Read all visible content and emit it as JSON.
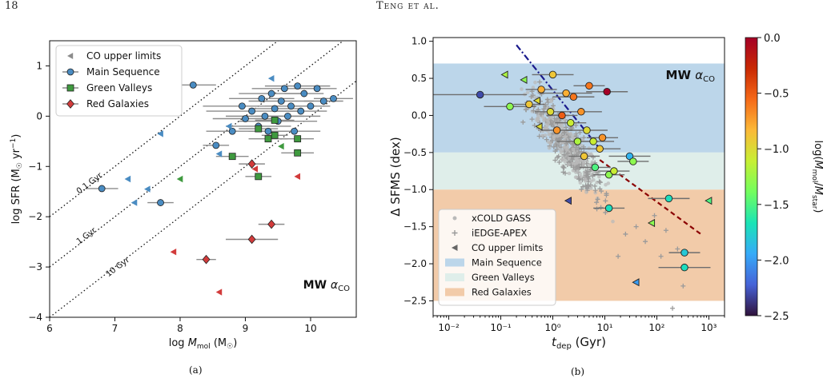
{
  "page": {
    "page_number": "18",
    "running_head": "Teng et al.",
    "caption_a": "(a)",
    "caption_b": "(b)"
  },
  "colors": {
    "main_sequence": "#4a8cc2",
    "green_valleys": "#3f9a3f",
    "red_galaxies": "#d23b3b",
    "upper_limit_grey": "#8c8c8c",
    "band_ms": "#bcd6ea",
    "band_gv": "#dfeeea",
    "band_rg": "#f2cba9",
    "fit_blue": "#1a1a8c",
    "fit_red": "#8b0000"
  },
  "chart_data": [
    {
      "type": "scatter",
      "xlabel": "log M_mol (M⊙)",
      "ylabel": "log SFR (M⊙ yr⁻¹)",
      "xlim": [
        6,
        10.7
      ],
      "ylim": [
        -4,
        1.5
      ],
      "xticks": [
        6,
        7,
        8,
        9,
        10
      ],
      "yticks": [
        -4,
        -3,
        -2,
        -1,
        0,
        1
      ],
      "grid": false,
      "legend_position": "top-left",
      "annotation": "MW α",
      "annotation_sub": "CO",
      "depletion_lines": [
        {
          "label": "0.1 Gyr",
          "log_tdep_yr": 8
        },
        {
          "label": "1 Gyr",
          "log_tdep_yr": 9
        },
        {
          "label": "10 Gyr",
          "log_tdep_yr": 10
        }
      ],
      "series": [
        {
          "name": "CO upper limits",
          "marker": "triangle-left",
          "color": "#8c8c8c",
          "points": []
        },
        {
          "name": "Main Sequence",
          "marker": "circle",
          "color": "#4a8cc2",
          "points": [
            [
              6.8,
              -1.44,
              0.25
            ],
            [
              7.7,
              -1.72,
              0.2
            ],
            [
              8.2,
              0.62,
              0.35
            ],
            [
              8.55,
              -0.58,
              0.2
            ],
            [
              8.8,
              -0.3,
              0.4
            ],
            [
              8.95,
              0.2,
              0.6
            ],
            [
              9.0,
              -0.05,
              0.5
            ],
            [
              9.1,
              0.1,
              0.7
            ],
            [
              9.2,
              -0.2,
              0.5
            ],
            [
              9.25,
              0.35,
              0.5
            ],
            [
              9.3,
              0.0,
              0.6
            ],
            [
              9.35,
              -0.3,
              0.3
            ],
            [
              9.4,
              0.45,
              0.5
            ],
            [
              9.45,
              0.15,
              0.4
            ],
            [
              9.5,
              -0.1,
              0.6
            ],
            [
              9.55,
              0.3,
              0.5
            ],
            [
              9.6,
              0.55,
              0.5
            ],
            [
              9.65,
              0.0,
              0.5
            ],
            [
              9.7,
              0.2,
              0.4
            ],
            [
              9.75,
              -0.3,
              0.4
            ],
            [
              9.8,
              0.6,
              0.5
            ],
            [
              9.85,
              0.1,
              0.4
            ],
            [
              9.9,
              0.45,
              0.3
            ],
            [
              10.0,
              0.2,
              0.3
            ],
            [
              10.1,
              0.55,
              0.3
            ],
            [
              10.2,
              0.3,
              0.3
            ],
            [
              10.35,
              0.35,
              0.3
            ]
          ]
        },
        {
          "name": "Green Valleys",
          "marker": "square",
          "color": "#3f9a3f",
          "points": [
            [
              8.8,
              -0.8,
              0.25
            ],
            [
              9.2,
              -1.2,
              0.2
            ],
            [
              9.2,
              -0.25,
              0.3
            ],
            [
              9.35,
              -0.45,
              0.3
            ],
            [
              9.45,
              -0.08,
              0.3
            ],
            [
              9.8,
              -0.45,
              0.25
            ],
            [
              9.8,
              -0.73,
              0.25
            ],
            [
              9.45,
              -0.38,
              0.2
            ]
          ]
        },
        {
          "name": "Red Galaxies",
          "marker": "diamond",
          "color": "#d23b3b",
          "points": [
            [
              8.4,
              -2.85,
              0.15
            ],
            [
              9.1,
              -0.95,
              0.2
            ],
            [
              9.1,
              -2.45,
              0.4
            ],
            [
              9.4,
              -2.15,
              0.2
            ]
          ]
        }
      ],
      "upper_limits": [
        {
          "x": 7.2,
          "y": -1.25,
          "color": "#4a8cc2"
        },
        {
          "x": 7.3,
          "y": -1.72,
          "color": "#4a8cc2"
        },
        {
          "x": 7.5,
          "y": -1.45,
          "color": "#4a8cc2"
        },
        {
          "x": 7.7,
          "y": -0.35,
          "color": "#4a8cc2"
        },
        {
          "x": 8.6,
          "y": -0.75,
          "color": "#4a8cc2"
        },
        {
          "x": 8.75,
          "y": -0.2,
          "color": "#4a8cc2"
        },
        {
          "x": 9.4,
          "y": 0.75,
          "color": "#4a8cc2"
        },
        {
          "x": 8.0,
          "y": -1.25,
          "color": "#3f9a3f"
        },
        {
          "x": 9.55,
          "y": -0.6,
          "color": "#3f9a3f"
        },
        {
          "x": 7.9,
          "y": -2.7,
          "color": "#d23b3b"
        },
        {
          "x": 8.6,
          "y": -3.5,
          "color": "#d23b3b"
        },
        {
          "x": 9.8,
          "y": -1.2,
          "color": "#d23b3b"
        },
        {
          "x": 9.15,
          "y": -1.05,
          "color": "#d23b3b"
        }
      ]
    },
    {
      "type": "scatter",
      "xlabel": "t_dep (Gyr)",
      "ylabel": "Δ SFMS (dex)",
      "xscale": "log",
      "xlim": [
        0.005,
        2000
      ],
      "ylim": [
        -2.7,
        1.05
      ],
      "xticks": [
        "10⁻²",
        "10⁻¹",
        "10⁰",
        "10¹",
        "10²",
        "10³"
      ],
      "yticks": [
        "1.0",
        "0.5",
        "0.0",
        "−0.5",
        "−1.0",
        "−1.5",
        "−2.0",
        "−2.5"
      ],
      "legend_position": "lower-left",
      "annotation": "MW α",
      "annotation_sub": "CO",
      "bands": [
        {
          "name": "Main Sequence",
          "y": [
            -0.5,
            0.7
          ],
          "color": "#bcd6ea"
        },
        {
          "name": "Green Valleys",
          "y": [
            -1.0,
            -0.5
          ],
          "color": "#dfeeea"
        },
        {
          "name": "Red Galaxies",
          "y": [
            -2.5,
            -1.0
          ],
          "color": "#f2cba9"
        }
      ],
      "legend": [
        "xCOLD GASS",
        "iEDGE-APEX",
        "CO upper limits",
        "Main Sequence",
        "Green Valleys",
        "Red Galaxies"
      ],
      "colorbar": {
        "label": "log(M_mol/M_star)",
        "range": [
          -2.5,
          0.0
        ],
        "ticks": [
          "0.0",
          "−0.5",
          "−1.0",
          "−1.5",
          "−2.0",
          "−2.5"
        ],
        "colormap": [
          "#30123b",
          "#4662d7",
          "#36aaf9",
          "#1ae4b6",
          "#72fe5e",
          "#c7ef34",
          "#fbb938",
          "#f56918",
          "#c92903",
          "#a50026"
        ]
      },
      "fit_lines": [
        {
          "style": "dash-dot",
          "color": "#1a1a8c",
          "x": [
            0.2,
            8
          ],
          "y": [
            0.95,
            -0.45
          ]
        },
        {
          "style": "dashed",
          "color": "#8b0000",
          "x": [
            8,
            700
          ],
          "y": [
            -0.6,
            -1.6
          ]
        }
      ],
      "points": [
        {
          "t": 0.04,
          "d": 0.28,
          "c": -2.3,
          "e": 0.9
        },
        {
          "t": 0.15,
          "d": 0.12,
          "c": -1.3,
          "e": 0.5
        },
        {
          "t": 0.35,
          "d": 0.15,
          "c": -0.9,
          "e": 0.3
        },
        {
          "t": 0.6,
          "d": 0.35,
          "c": -0.8,
          "e": 0.3
        },
        {
          "t": 0.9,
          "d": 0.05,
          "c": -1.0,
          "e": 0.3
        },
        {
          "t": 1.0,
          "d": 0.55,
          "c": -0.9,
          "e": 0.4
        },
        {
          "t": 1.2,
          "d": -0.2,
          "c": -0.7,
          "e": 0.3
        },
        {
          "t": 1.5,
          "d": 0.0,
          "c": -0.5,
          "e": 0.3
        },
        {
          "t": 1.8,
          "d": 0.3,
          "c": -0.8,
          "e": 0.5
        },
        {
          "t": 2.2,
          "d": -0.1,
          "c": -1.1,
          "e": 0.3
        },
        {
          "t": 2.5,
          "d": 0.25,
          "c": -0.6,
          "e": 0.4
        },
        {
          "t": 3.0,
          "d": -0.35,
          "c": -1.2,
          "e": 0.4
        },
        {
          "t": 3.5,
          "d": 0.05,
          "c": -0.7,
          "e": 0.4
        },
        {
          "t": 4.0,
          "d": -0.55,
          "c": -0.9,
          "e": 0.3
        },
        {
          "t": 4.5,
          "d": -0.2,
          "c": -1.0,
          "e": 0.4
        },
        {
          "t": 5.0,
          "d": 0.4,
          "c": -0.6,
          "e": 0.3
        },
        {
          "t": 6.0,
          "d": -0.35,
          "c": -1.1,
          "e": 0.4
        },
        {
          "t": 6.5,
          "d": -0.7,
          "c": -1.5,
          "e": 0.3
        },
        {
          "t": 8.0,
          "d": -0.45,
          "c": -0.9,
          "e": 0.4
        },
        {
          "t": 9.0,
          "d": -0.3,
          "c": -0.7,
          "e": 0.3
        },
        {
          "t": 11.0,
          "d": 0.32,
          "c": 0.0,
          "e": 0.4
        },
        {
          "t": 12.0,
          "d": -0.8,
          "c": -1.3,
          "e": 0.3
        },
        {
          "t": 15.0,
          "d": -0.75,
          "c": -1.1,
          "e": 0.3
        },
        {
          "t": 12.0,
          "d": -1.25,
          "c": -1.7,
          "e": 0.3
        },
        {
          "t": 30.0,
          "d": -0.55,
          "c": -1.9,
          "e": 0.4
        },
        {
          "t": 35.0,
          "d": -0.62,
          "c": -1.3,
          "e": 0.3
        },
        {
          "t": 170.0,
          "d": -1.12,
          "c": -1.7,
          "e": 0.4
        },
        {
          "t": 340.0,
          "d": -1.85,
          "c": -1.8,
          "e": 0.3
        },
        {
          "t": 340.0,
          "d": -2.05,
          "c": -1.7,
          "e": 0.5
        }
      ],
      "upper_limits": [
        {
          "t": 0.12,
          "d": 0.55,
          "c": -1.2
        },
        {
          "t": 0.28,
          "d": 0.48,
          "c": -1.3
        },
        {
          "t": 0.5,
          "d": 0.2,
          "c": -1.0
        },
        {
          "t": 0.55,
          "d": -0.15,
          "c": -1.0
        },
        {
          "t": 2.0,
          "d": -1.15,
          "c": -2.3
        },
        {
          "t": 40.0,
          "d": -2.25,
          "c": -2.0
        },
        {
          "t": 80.0,
          "d": -1.45,
          "c": -1.3
        },
        {
          "t": 1000.0,
          "d": -1.15,
          "c": -1.5
        }
      ]
    }
  ]
}
